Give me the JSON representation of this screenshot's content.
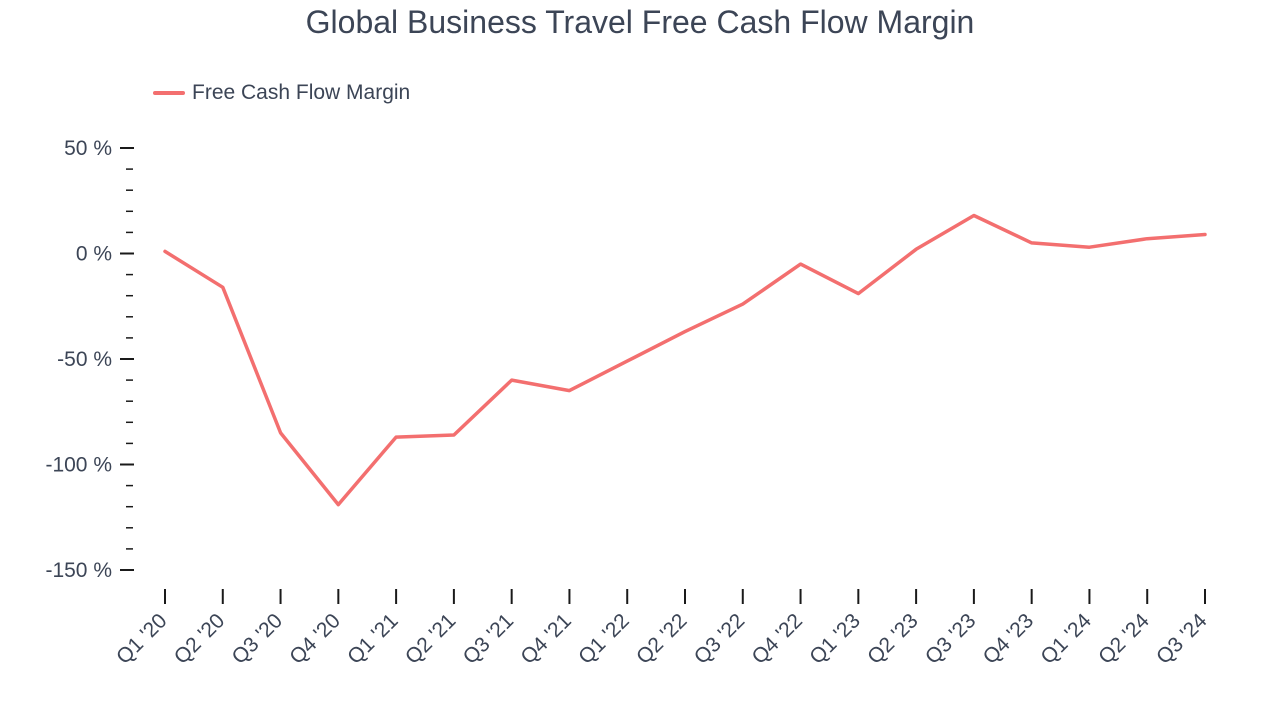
{
  "chart_data": {
    "type": "line",
    "title": "Global Business Travel Free Cash Flow Margin",
    "xlabel": "",
    "ylabel": "",
    "categories": [
      "Q1 '20",
      "Q2 '20",
      "Q3 '20",
      "Q4 '20",
      "Q1 '21",
      "Q2 '21",
      "Q3 '21",
      "Q4 '21",
      "Q1 '22",
      "Q2 '22",
      "Q3 '22",
      "Q4 '22",
      "Q1 '23",
      "Q2 '23",
      "Q3 '23",
      "Q4 '23",
      "Q1 '24",
      "Q2 '24",
      "Q3 '24"
    ],
    "series": [
      {
        "name": "Free Cash Flow Margin",
        "color": "#f36f6f",
        "values": [
          1,
          -16,
          -85,
          -119,
          -87,
          -86,
          -60,
          -65,
          -51,
          -37,
          -24,
          -5,
          -19,
          2,
          18,
          5,
          3,
          7,
          9
        ]
      }
    ],
    "ylim": [
      -150,
      50
    ],
    "y_ticks": [
      50,
      0,
      -50,
      -100,
      -150
    ],
    "y_tick_labels": [
      "50 %",
      "0 %",
      "-50 %",
      "-100 %",
      "-150 %"
    ],
    "y_minor_step": 10,
    "grid": false,
    "legend_position": "top-left"
  }
}
